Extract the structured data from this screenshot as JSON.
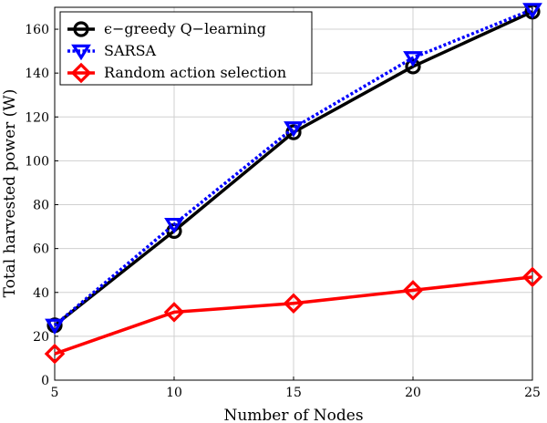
{
  "chart_data": {
    "type": "line",
    "x": [
      5,
      10,
      15,
      20,
      25
    ],
    "xlabel": "Number of Nodes",
    "ylabel": "Total harvested power (W)",
    "xlim": [
      5,
      25
    ],
    "ylim": [
      0,
      170
    ],
    "xticks": [
      5,
      10,
      15,
      20,
      25
    ],
    "yticks": [
      0,
      20,
      40,
      60,
      80,
      100,
      120,
      140,
      160
    ],
    "grid": true,
    "legend_position": "top-left",
    "series": [
      {
        "name": "ϵ−greedy Q−learning",
        "values": [
          25,
          68,
          113,
          143,
          168
        ],
        "color": "#000000",
        "marker": "circle",
        "line_style": "solid"
      },
      {
        "name": "SARSA",
        "values": [
          25,
          71,
          115,
          147,
          169
        ],
        "color": "#0000ff",
        "marker": "triangle-down",
        "line_style": "dotted"
      },
      {
        "name": "Random action selection",
        "values": [
          12,
          31,
          35,
          41,
          47
        ],
        "color": "#ff0000",
        "marker": "diamond",
        "line_style": "solid"
      }
    ]
  }
}
